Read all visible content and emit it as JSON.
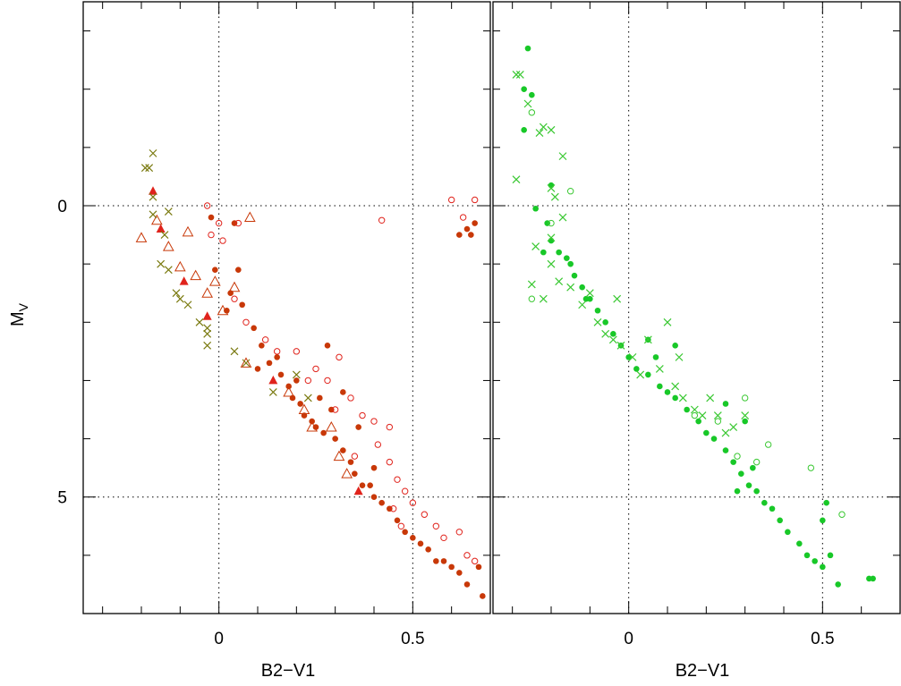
{
  "colors": {
    "red": "#e0231c",
    "darkred": "#c83808",
    "olive": "#7a7a10",
    "green": "#18c828",
    "green_light": "#3ac832"
  },
  "chart_data": [
    {
      "type": "scatter",
      "panel": "left",
      "xlabel": "B2−V1",
      "ylabel": "M",
      "ylabel_sub": "V",
      "xlim": [
        -0.35,
        0.7
      ],
      "ylim": [
        7,
        -3.5
      ],
      "x_ticks": [
        0,
        0.5
      ],
      "x_tick_labels": [
        "0",
        "0.5"
      ],
      "y_ticks": [
        0,
        5
      ],
      "y_tick_labels": [
        "0",
        "5"
      ],
      "reference_lines": {
        "x": [
          0,
          0.5
        ],
        "y": [
          0,
          5
        ]
      },
      "series": [
        {
          "marker": "circle-filled",
          "color": "#c83808",
          "points": [
            [
              -0.02,
              0.2
            ],
            [
              0.04,
              0.3
            ],
            [
              -0.01,
              1.1
            ],
            [
              0.05,
              1.1
            ],
            [
              0.03,
              1.5
            ],
            [
              0.06,
              1.7
            ],
            [
              0.02,
              1.8
            ],
            [
              0.09,
              2.1
            ],
            [
              0.11,
              2.4
            ],
            [
              0.13,
              2.7
            ],
            [
              0.1,
              2.8
            ],
            [
              0.16,
              2.9
            ],
            [
              0.18,
              3.1
            ],
            [
              0.19,
              3.3
            ],
            [
              0.21,
              3.4
            ],
            [
              0.22,
              3.6
            ],
            [
              0.24,
              3.7
            ],
            [
              0.25,
              3.8
            ],
            [
              0.27,
              3.9
            ],
            [
              0.29,
              3.5
            ],
            [
              0.3,
              4.0
            ],
            [
              0.32,
              4.2
            ],
            [
              0.34,
              4.4
            ],
            [
              0.35,
              4.6
            ],
            [
              0.37,
              4.8
            ],
            [
              0.39,
              4.8
            ],
            [
              0.4,
              5.0
            ],
            [
              0.42,
              5.1
            ],
            [
              0.44,
              5.2
            ],
            [
              0.46,
              5.4
            ],
            [
              0.48,
              5.6
            ],
            [
              0.5,
              5.7
            ],
            [
              0.52,
              5.8
            ],
            [
              0.54,
              5.9
            ],
            [
              0.56,
              6.1
            ],
            [
              0.58,
              6.1
            ],
            [
              0.6,
              6.2
            ],
            [
              0.62,
              6.3
            ],
            [
              0.64,
              6.5
            ],
            [
              0.67,
              6.2
            ],
            [
              0.68,
              6.7
            ],
            [
              0.66,
              0.3
            ],
            [
              0.64,
              0.4
            ],
            [
              0.65,
              0.5
            ],
            [
              0.62,
              0.5
            ],
            [
              0.28,
              2.4
            ],
            [
              0.32,
              3.2
            ],
            [
              0.36,
              3.8
            ],
            [
              0.4,
              4.5
            ],
            [
              0.26,
              3.3
            ],
            [
              0.2,
              3.0
            ],
            [
              0.15,
              2.6
            ]
          ]
        },
        {
          "marker": "circle-open",
          "color": "#e0231c",
          "points": [
            [
              -0.03,
              0.0
            ],
            [
              0.0,
              0.3
            ],
            [
              0.05,
              0.3
            ],
            [
              -0.02,
              0.5
            ],
            [
              0.01,
              0.6
            ],
            [
              0.42,
              0.25
            ],
            [
              0.6,
              -0.1
            ],
            [
              0.66,
              -0.1
            ],
            [
              0.63,
              0.2
            ],
            [
              0.04,
              1.6
            ],
            [
              0.07,
              2.0
            ],
            [
              0.12,
              2.3
            ],
            [
              0.15,
              2.5
            ],
            [
              0.2,
              2.5
            ],
            [
              0.25,
              2.8
            ],
            [
              0.28,
              3.0
            ],
            [
              0.31,
              2.6
            ],
            [
              0.34,
              3.3
            ],
            [
              0.37,
              3.6
            ],
            [
              0.4,
              3.7
            ],
            [
              0.44,
              3.8
            ],
            [
              0.41,
              4.1
            ],
            [
              0.44,
              4.4
            ],
            [
              0.46,
              4.7
            ],
            [
              0.48,
              4.9
            ],
            [
              0.5,
              5.1
            ],
            [
              0.53,
              5.3
            ],
            [
              0.56,
              5.5
            ],
            [
              0.58,
              5.7
            ],
            [
              0.62,
              5.6
            ],
            [
              0.64,
              6.0
            ],
            [
              0.66,
              6.1
            ],
            [
              0.45,
              5.2
            ],
            [
              0.47,
              5.5
            ],
            [
              0.35,
              4.3
            ],
            [
              0.23,
              3.0
            ],
            [
              0.3,
              3.5
            ]
          ]
        },
        {
          "marker": "triangle-filled",
          "color": "#e0231c",
          "points": [
            [
              -0.17,
              -0.25
            ],
            [
              -0.15,
              0.4
            ],
            [
              -0.09,
              1.3
            ],
            [
              -0.03,
              1.9
            ],
            [
              0.14,
              3.0
            ],
            [
              0.36,
              4.9
            ]
          ]
        },
        {
          "marker": "triangle-open",
          "color": "#c83808",
          "points": [
            [
              -0.2,
              0.55
            ],
            [
              -0.16,
              0.25
            ],
            [
              -0.13,
              0.7
            ],
            [
              -0.08,
              0.45
            ],
            [
              -0.1,
              1.05
            ],
            [
              -0.06,
              1.2
            ],
            [
              0.08,
              0.2
            ],
            [
              -0.01,
              1.3
            ],
            [
              0.01,
              1.8
            ],
            [
              0.07,
              2.7
            ],
            [
              0.18,
              3.2
            ],
            [
              0.22,
              3.5
            ],
            [
              0.24,
              3.8
            ],
            [
              0.31,
              4.3
            ],
            [
              0.33,
              4.6
            ],
            [
              0.29,
              3.8
            ],
            [
              -0.03,
              1.5
            ],
            [
              0.04,
              1.4
            ]
          ]
        },
        {
          "marker": "cross",
          "color": "#7a7a10",
          "points": [
            [
              -0.17,
              -0.9
            ],
            [
              -0.18,
              -0.65
            ],
            [
              -0.19,
              -0.65
            ],
            [
              -0.17,
              -0.15
            ],
            [
              -0.13,
              0.1
            ],
            [
              -0.17,
              0.15
            ],
            [
              -0.14,
              0.5
            ],
            [
              -0.15,
              1.0
            ],
            [
              -0.13,
              1.1
            ],
            [
              -0.11,
              1.5
            ],
            [
              -0.1,
              1.6
            ],
            [
              -0.08,
              1.7
            ],
            [
              -0.05,
              2.0
            ],
            [
              -0.03,
              2.1
            ],
            [
              -0.03,
              2.2
            ],
            [
              -0.03,
              2.4
            ],
            [
              0.04,
              2.5
            ],
            [
              0.07,
              2.7
            ],
            [
              0.14,
              3.2
            ],
            [
              0.2,
              2.9
            ],
            [
              0.23,
              3.3
            ]
          ]
        }
      ]
    },
    {
      "type": "scatter",
      "panel": "right",
      "xlabel": "B2−V1",
      "xlim": [
        -0.35,
        0.7
      ],
      "ylim": [
        7,
        -3.5
      ],
      "x_ticks": [
        0,
        0.5
      ],
      "x_tick_labels": [
        "0",
        "0.5"
      ],
      "y_ticks": [
        0,
        5
      ],
      "reference_lines": {
        "x": [
          0,
          0.5
        ],
        "y": [
          0,
          5
        ]
      },
      "series": [
        {
          "marker": "circle-filled",
          "color": "#18c828",
          "points": [
            [
              -0.26,
              -2.7
            ],
            [
              -0.27,
              -2.0
            ],
            [
              -0.25,
              -1.9
            ],
            [
              -0.27,
              -1.3
            ],
            [
              -0.2,
              -0.35
            ],
            [
              -0.24,
              0.05
            ],
            [
              -0.21,
              0.3
            ],
            [
              -0.2,
              0.6
            ],
            [
              -0.18,
              0.8
            ],
            [
              -0.15,
              1.0
            ],
            [
              -0.14,
              1.2
            ],
            [
              -0.12,
              1.4
            ],
            [
              -0.1,
              1.6
            ],
            [
              -0.08,
              1.8
            ],
            [
              -0.06,
              2.0
            ],
            [
              -0.04,
              2.2
            ],
            [
              -0.02,
              2.4
            ],
            [
              0.0,
              2.6
            ],
            [
              0.02,
              2.8
            ],
            [
              0.05,
              2.9
            ],
            [
              0.08,
              3.1
            ],
            [
              0.1,
              3.2
            ],
            [
              0.12,
              3.3
            ],
            [
              0.15,
              3.5
            ],
            [
              0.18,
              3.7
            ],
            [
              0.2,
              3.9
            ],
            [
              0.22,
              4.0
            ],
            [
              0.25,
              4.2
            ],
            [
              0.27,
              4.4
            ],
            [
              0.29,
              4.6
            ],
            [
              0.31,
              4.8
            ],
            [
              0.33,
              4.9
            ],
            [
              0.35,
              5.1
            ],
            [
              0.37,
              5.2
            ],
            [
              0.39,
              5.4
            ],
            [
              0.41,
              5.6
            ],
            [
              0.44,
              5.8
            ],
            [
              0.46,
              6.0
            ],
            [
              0.48,
              6.1
            ],
            [
              0.5,
              6.2
            ],
            [
              0.52,
              6.0
            ],
            [
              0.54,
              6.5
            ],
            [
              0.51,
              5.1
            ],
            [
              0.62,
              6.4
            ],
            [
              0.63,
              6.4
            ],
            [
              0.5,
              5.4
            ],
            [
              0.12,
              2.4
            ],
            [
              0.05,
              2.3
            ],
            [
              0.3,
              3.7
            ],
            [
              0.32,
              4.5
            ],
            [
              0.28,
              4.9
            ],
            [
              -0.22,
              0.8
            ],
            [
              -0.16,
              0.9
            ],
            [
              -0.11,
              1.6
            ],
            [
              0.07,
              2.6
            ],
            [
              0.25,
              3.4
            ]
          ]
        },
        {
          "marker": "circle-open",
          "color": "#3ac832",
          "points": [
            [
              -0.25,
              -1.6
            ],
            [
              -0.15,
              -0.25
            ],
            [
              -0.25,
              1.6
            ],
            [
              0.36,
              4.1
            ],
            [
              0.33,
              4.4
            ],
            [
              0.47,
              4.5
            ],
            [
              0.55,
              5.3
            ],
            [
              0.23,
              3.7
            ],
            [
              0.17,
              3.6
            ],
            [
              0.28,
              4.3
            ],
            [
              -0.2,
              0.3
            ],
            [
              0.3,
              3.3
            ]
          ]
        },
        {
          "marker": "cross",
          "color": "#3ac832",
          "points": [
            [
              -0.28,
              -2.25
            ],
            [
              -0.29,
              -2.25
            ],
            [
              -0.26,
              -1.75
            ],
            [
              -0.22,
              -1.35
            ],
            [
              -0.2,
              -1.3
            ],
            [
              -0.23,
              -1.25
            ],
            [
              -0.17,
              -0.85
            ],
            [
              -0.29,
              -0.45
            ],
            [
              -0.2,
              -0.3
            ],
            [
              -0.19,
              -0.15
            ],
            [
              -0.17,
              0.2
            ],
            [
              -0.2,
              0.55
            ],
            [
              -0.24,
              0.7
            ],
            [
              -0.2,
              1.0
            ],
            [
              -0.18,
              1.3
            ],
            [
              -0.15,
              1.4
            ],
            [
              -0.25,
              1.35
            ],
            [
              -0.22,
              1.6
            ],
            [
              -0.12,
              1.7
            ],
            [
              -0.1,
              1.5
            ],
            [
              -0.08,
              2.0
            ],
            [
              -0.06,
              2.2
            ],
            [
              -0.04,
              2.3
            ],
            [
              -0.02,
              2.4
            ],
            [
              0.01,
              2.6
            ],
            [
              0.03,
              2.9
            ],
            [
              0.05,
              2.3
            ],
            [
              0.08,
              2.8
            ],
            [
              0.12,
              3.1
            ],
            [
              0.14,
              3.3
            ],
            [
              0.17,
              3.5
            ],
            [
              0.19,
              3.6
            ],
            [
              0.21,
              3.3
            ],
            [
              0.23,
              3.6
            ],
            [
              0.25,
              3.9
            ],
            [
              0.27,
              3.8
            ],
            [
              0.3,
              3.6
            ],
            [
              0.1,
              2.0
            ],
            [
              -0.03,
              1.6
            ],
            [
              0.13,
              2.6
            ]
          ]
        }
      ]
    }
  ]
}
